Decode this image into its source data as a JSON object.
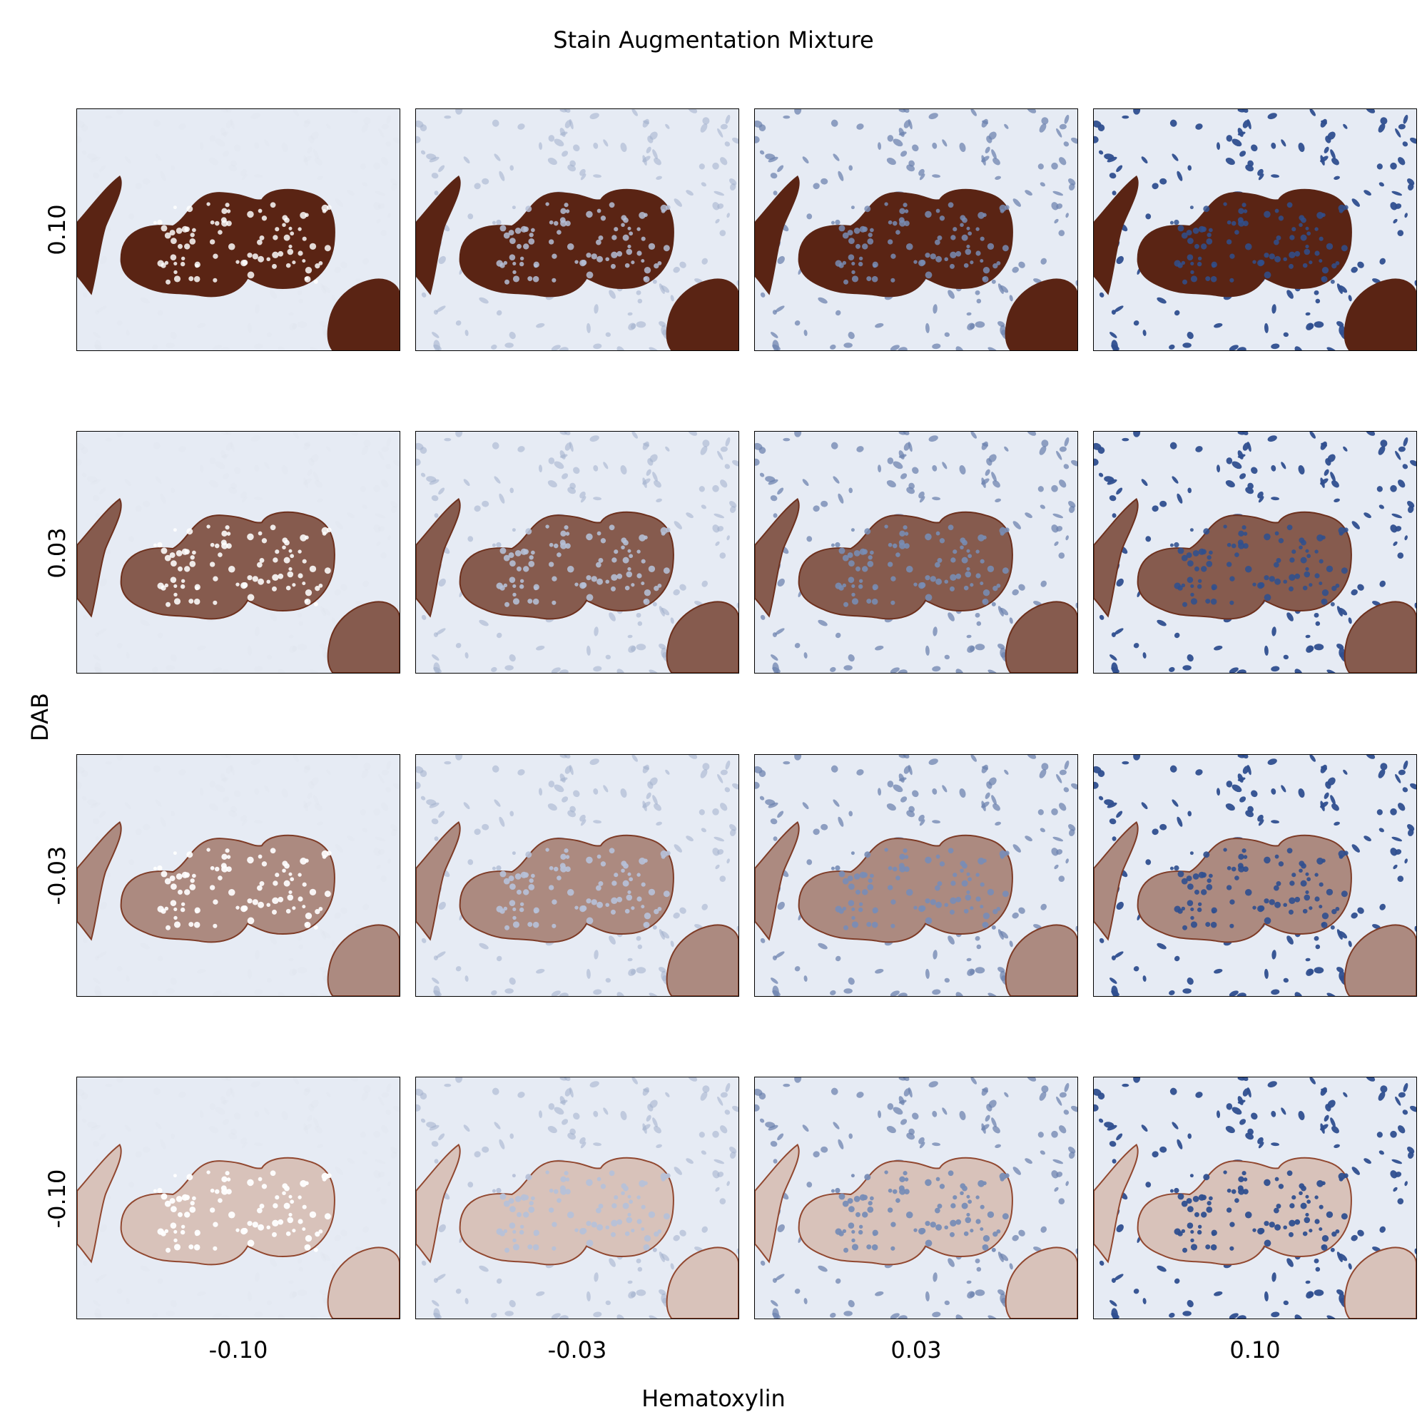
{
  "figure": {
    "title": "Stain Augmentation Mixture",
    "xlabel": "Hematoxylin",
    "ylabel": "DAB"
  },
  "grid": {
    "rows": [
      "0.10",
      "0.03",
      "-0.03",
      "-0.10"
    ],
    "cols": [
      "-0.10",
      "-0.03",
      "0.03",
      "0.10"
    ],
    "dab_levels": [
      0.1,
      0.03,
      -0.03,
      -0.1
    ],
    "hematoxylin_levels": [
      -0.1,
      -0.03,
      0.03,
      0.1
    ]
  },
  "colors": {
    "background_tissue": "#e6ebf4",
    "dab_brown": "#5a2414",
    "dab_light": "#c86a4a",
    "hematoxylin_blue": "#2f4f8f",
    "hematoxylin_light": "#9fb1d3"
  }
}
